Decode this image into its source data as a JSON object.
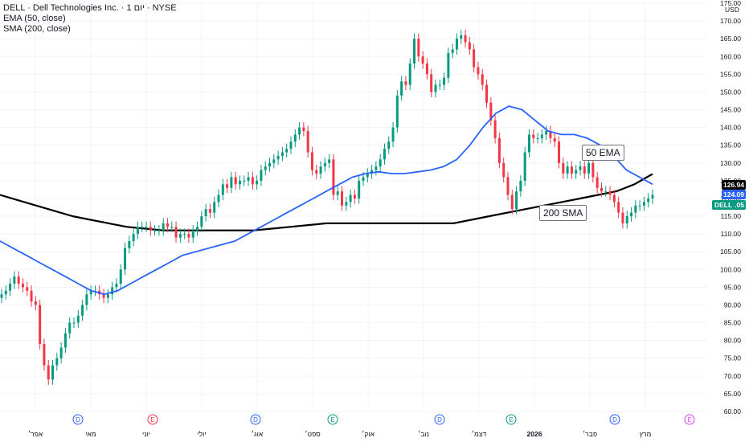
{
  "legend": {
    "symbol": "DELL · Dell Technologies Inc. · יום 1 · NYSE",
    "ema": "EMA (50, close)",
    "sma": "SMA (200, close)"
  },
  "price_labels": {
    "currency": "USD",
    "sma_value": "126.94",
    "ema_value": "124.09",
    "last_price": "121.05",
    "ticker": "DELL"
  },
  "annotations": {
    "ema_note": "50 EMA",
    "sma_note": "200 SMA"
  },
  "colors": {
    "up": "#089981",
    "down": "#f23645",
    "ema": "#2962ff",
    "sma": "#000000",
    "grid": "#f0f3fa",
    "axis_text": "#131722",
    "sma_label_bg": "#000000",
    "ema_label_bg": "#2962ff",
    "price_label_bg": "#089981"
  },
  "chart_data": {
    "type": "line",
    "title": "",
    "ylim": [
      60,
      175
    ],
    "y_ticks": [
      "60.00",
      "65.00",
      "70.00",
      "75.00",
      "80.00",
      "85.00",
      "90.00",
      "95.00",
      "100.00",
      "105.00",
      "110.00",
      "115.00",
      "120.00",
      "125.00",
      "130.00",
      "135.00",
      "140.00",
      "145.00",
      "150.00",
      "155.00",
      "160.00",
      "165.00",
      "170.00",
      "175.00"
    ],
    "x_labels": [
      "אפר׳",
      "מאי",
      "יוני",
      "יולי",
      "אוג׳",
      "ספט׳",
      "אוק׳",
      "נוב׳",
      "דצמ׳",
      "2026",
      "פבר׳",
      "מרץ"
    ],
    "event_markers": [
      {
        "label": "D",
        "color": "#2962ff"
      },
      {
        "label": "E",
        "color": "#f23645"
      },
      {
        "label": "D",
        "color": "#2962ff"
      },
      {
        "label": "E",
        "color": "#089981"
      },
      {
        "label": "D",
        "color": "#2962ff"
      },
      {
        "label": "E",
        "color": "#089981"
      },
      {
        "label": "D",
        "color": "#2962ff"
      },
      {
        "label": "E",
        "color": "#e040fb"
      }
    ],
    "series": [
      {
        "name": "EMA (50, close)",
        "values": [
          108,
          106,
          104,
          102,
          100,
          98,
          96,
          94,
          93,
          94,
          96,
          98,
          100,
          102,
          104,
          105,
          106,
          107,
          108,
          110,
          112,
          114,
          116,
          118,
          120,
          122,
          124,
          126,
          127,
          127.5,
          127,
          127,
          127.5,
          128,
          129,
          131,
          135,
          140,
          144,
          146,
          145,
          142,
          139,
          138,
          138,
          137,
          135,
          132,
          128,
          126,
          124
        ]
      },
      {
        "name": "SMA (200, close)",
        "values": [
          121,
          119.5,
          118,
          116.5,
          115,
          114,
          113,
          112,
          111.5,
          111,
          111,
          111,
          111,
          111,
          111,
          111.5,
          112,
          112.5,
          113,
          113,
          113,
          113,
          113,
          113,
          113,
          113,
          114,
          115,
          116,
          117,
          118,
          119,
          120,
          121,
          122,
          124,
          126.9
        ]
      }
    ],
    "closes": [
      93,
      94,
      96,
      98,
      96,
      95,
      94,
      91,
      90,
      79,
      73,
      69,
      73,
      75,
      78,
      82,
      85,
      85,
      87,
      90,
      93,
      94,
      94,
      93,
      92,
      93,
      95,
      96,
      100,
      106,
      108,
      110,
      112,
      112,
      112,
      111,
      111,
      111,
      113,
      112,
      112,
      109,
      110,
      110,
      109,
      111,
      112,
      115,
      117,
      116,
      119,
      121,
      124,
      123,
      126,
      124,
      125,
      125,
      126,
      124,
      125,
      128,
      129,
      130,
      131,
      132,
      133,
      134,
      136,
      138,
      140,
      139,
      133,
      128,
      127,
      129,
      130,
      131,
      121,
      122,
      118,
      119,
      121,
      120,
      125,
      126,
      127,
      128,
      129,
      131,
      134,
      136,
      140,
      149,
      153,
      152,
      158,
      165,
      160,
      158,
      155,
      150,
      152,
      152,
      154,
      161,
      162,
      165,
      166,
      164,
      162,
      157,
      155,
      152,
      147,
      142,
      137,
      130,
      126,
      121,
      117,
      122,
      125,
      133,
      138,
      137,
      137,
      138,
      139,
      137,
      136,
      130,
      127,
      129,
      127,
      128,
      129,
      127,
      130,
      126,
      123,
      122,
      122,
      121,
      119,
      116,
      113,
      115,
      116,
      118,
      118,
      119,
      120,
      121
    ]
  }
}
